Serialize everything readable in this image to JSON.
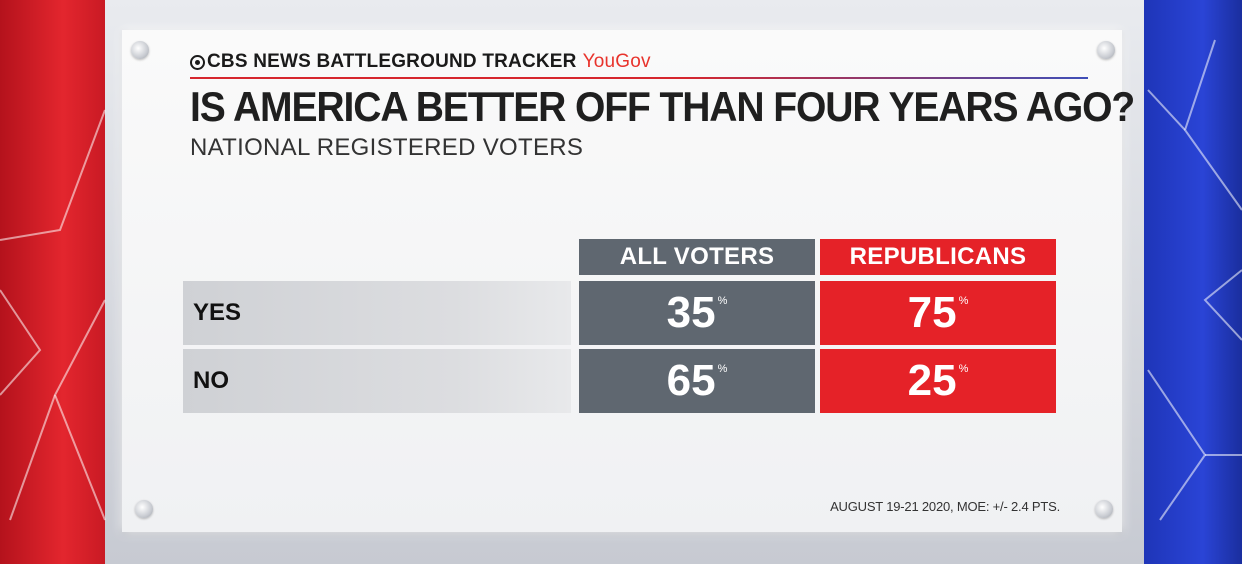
{
  "header": {
    "brand": "CBS NEWS BATTLEGROUND TRACKER",
    "partner": "YouGov",
    "title": "IS AMERICA BETTER OFF THAN FOUR YEARS AGO?",
    "subtitle": "NATIONAL REGISTERED VOTERS"
  },
  "footnote": "AUGUST 19-21 2020, MOE: +/- 2.4 PTS.",
  "colors": {
    "republican_red": "#e52228",
    "gray": "#5f6770",
    "left_panel": "#e3262e",
    "right_panel": "#2a44d6"
  },
  "chart_data": {
    "type": "table",
    "title": "IS AMERICA BETTER OFF THAN FOUR YEARS AGO?",
    "subtitle": "NATIONAL REGISTERED VOTERS",
    "columns": [
      "ALL VOTERS",
      "REPUBLICANS"
    ],
    "rows": [
      "YES",
      "NO"
    ],
    "series": [
      {
        "name": "ALL VOTERS",
        "values": [
          35,
          65
        ]
      },
      {
        "name": "REPUBLICANS",
        "values": [
          75,
          25
        ]
      }
    ],
    "unit": "%"
  }
}
